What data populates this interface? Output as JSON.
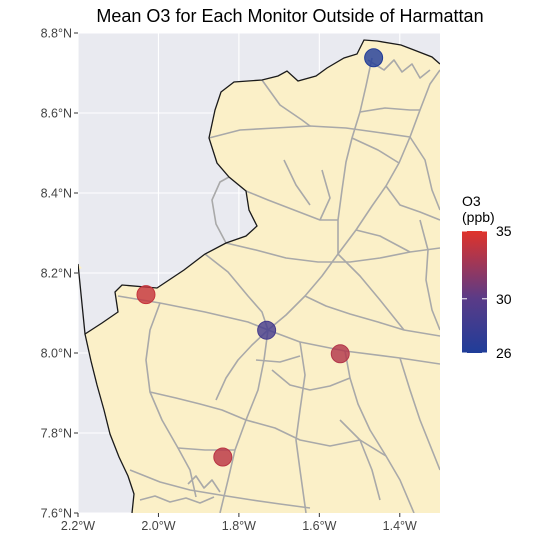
{
  "chart_data": {
    "type": "map",
    "title": "Mean O3 for Each Monitor Outside of Harmattan",
    "xlim": [
      -2.2,
      -1.3
    ],
    "ylim": [
      7.6,
      8.8
    ],
    "x_ticks": [
      {
        "value": -2.2,
        "label": "2.2°W"
      },
      {
        "value": -2.0,
        "label": "2.0°W"
      },
      {
        "value": -1.8,
        "label": "1.8°W"
      },
      {
        "value": -1.6,
        "label": "1.6°W"
      },
      {
        "value": -1.4,
        "label": "1.4°W"
      }
    ],
    "y_ticks": [
      {
        "value": 7.6,
        "label": "7.6°N"
      },
      {
        "value": 7.8,
        "label": "7.8°N"
      },
      {
        "value": 8.0,
        "label": "8.0°N"
      },
      {
        "value": 8.2,
        "label": "8.2°N"
      },
      {
        "value": 8.4,
        "label": "8.4°N"
      },
      {
        "value": 8.6,
        "label": "8.6°N"
      },
      {
        "value": 8.8,
        "label": "8.8°N"
      }
    ],
    "legend": {
      "title_line1": "O3",
      "title_line2": "(ppb)",
      "min": 26,
      "max": 35,
      "labels": [
        {
          "value": 35,
          "label": "35"
        },
        {
          "value": 30,
          "label": "30"
        },
        {
          "value": 26,
          "label": "26"
        }
      ],
      "low_color": "#1f3d99",
      "mid_color": "#5b3b87",
      "high_color": "#e0332a"
    },
    "monitors": [
      {
        "lon": -1.465,
        "lat": 8.738,
        "o3": 26.2
      },
      {
        "lon": -2.031,
        "lat": 8.146,
        "o3": 34.0
      },
      {
        "lon": -1.731,
        "lat": 8.057,
        "o3": 28.6
      },
      {
        "lon": -1.548,
        "lat": 7.998,
        "o3": 33.3
      },
      {
        "lon": -1.84,
        "lat": 7.74,
        "o3": 33.6
      }
    ],
    "grid": true,
    "colors": {
      "panel_background": "#e9eaf0",
      "land_fill": "#fbf0c8",
      "border_color": "#1a1a1a",
      "road_color": "#a9a9a9",
      "grid_color": "#ffffff"
    }
  }
}
